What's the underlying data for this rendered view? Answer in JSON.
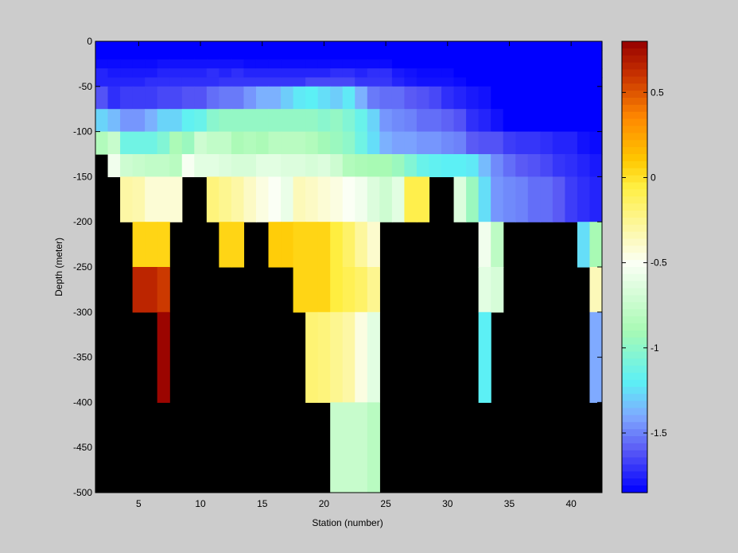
{
  "chart_data": [
    {
      "type": "heatmap",
      "title": "",
      "xlabel": "Station (number)",
      "ylabel": "Depth (meter)",
      "xlim": [
        1.5,
        42.5
      ],
      "ylim": [
        -500,
        0
      ],
      "xticks": [
        5,
        10,
        15,
        20,
        25,
        30,
        35,
        40
      ],
      "yticks": [
        0,
        -50,
        -100,
        -150,
        -200,
        -250,
        -300,
        -350,
        -400,
        -450,
        -500
      ],
      "x": [
        2,
        3,
        4,
        5,
        6,
        7,
        8,
        9,
        10,
        11,
        12,
        13,
        14,
        15,
        16,
        17,
        18,
        19,
        20,
        21,
        22,
        23,
        24,
        25,
        26,
        27,
        28,
        29,
        30,
        31,
        32,
        33,
        34,
        35,
        36,
        37,
        38,
        39,
        40,
        41,
        42
      ],
      "depths": [
        0,
        -10,
        -20,
        -30,
        -40,
        -50,
        -75,
        -100,
        -125,
        -150,
        -200,
        -250,
        -300,
        -400,
        -500
      ],
      "missing_color": "#000000",
      "grid": false,
      "rows": [
        {
          "depth": 0,
          "values": [
            -1.85,
            -1.85,
            -1.85,
            -1.85,
            -1.85,
            -1.85,
            -1.85,
            -1.85,
            -1.85,
            -1.85,
            -1.85,
            -1.85,
            -1.85,
            -1.85,
            -1.85,
            -1.85,
            -1.85,
            -1.85,
            -1.85,
            -1.85,
            -1.85,
            -1.85,
            -1.85,
            -1.85,
            -1.85,
            -1.85,
            -1.85,
            -1.85,
            -1.85,
            -1.85,
            -1.85,
            -1.85,
            -1.85,
            -1.85,
            -1.85,
            -1.85,
            -1.85,
            -1.85,
            -1.85,
            -1.85,
            -1.85
          ]
        },
        {
          "depth": -10,
          "values": [
            -1.85,
            -1.85,
            -1.85,
            -1.85,
            -1.85,
            -1.85,
            -1.85,
            -1.85,
            -1.85,
            -1.85,
            -1.85,
            -1.85,
            -1.85,
            -1.85,
            -1.85,
            -1.85,
            -1.85,
            -1.85,
            -1.85,
            -1.85,
            -1.85,
            -1.85,
            -1.85,
            -1.85,
            -1.85,
            -1.85,
            -1.85,
            -1.85,
            -1.85,
            -1.85,
            -1.85,
            -1.85,
            -1.85,
            -1.85,
            -1.85,
            -1.85,
            -1.85,
            -1.85,
            -1.85,
            -1.85,
            -1.85
          ]
        },
        {
          "depth": -20,
          "values": [
            -1.82,
            -1.82,
            -1.82,
            -1.82,
            -1.82,
            -1.8,
            -1.8,
            -1.8,
            -1.8,
            -1.8,
            -1.8,
            -1.8,
            -1.82,
            -1.82,
            -1.82,
            -1.82,
            -1.82,
            -1.82,
            -1.82,
            -1.82,
            -1.82,
            -1.82,
            -1.82,
            -1.82,
            -1.85,
            -1.85,
            -1.85,
            -1.85,
            -1.85,
            -1.85,
            -1.85,
            -1.85,
            -1.85,
            -1.85,
            -1.85,
            -1.85,
            -1.85,
            -1.85,
            -1.85,
            -1.85,
            -1.85
          ]
        },
        {
          "depth": -30,
          "values": [
            -1.75,
            -1.78,
            -1.78,
            -1.78,
            -1.78,
            -1.75,
            -1.75,
            -1.75,
            -1.75,
            -1.72,
            -1.75,
            -1.72,
            -1.75,
            -1.75,
            -1.75,
            -1.75,
            -1.75,
            -1.75,
            -1.75,
            -1.72,
            -1.72,
            -1.75,
            -1.72,
            -1.72,
            -1.78,
            -1.8,
            -1.82,
            -1.82,
            -1.82,
            -1.85,
            -1.85,
            -1.85,
            -1.85,
            -1.85,
            -1.85,
            -1.85,
            -1.85,
            -1.85,
            -1.85,
            -1.85,
            -1.85
          ]
        },
        {
          "depth": -40,
          "values": [
            -1.75,
            -1.75,
            -1.75,
            -1.75,
            -1.72,
            -1.72,
            -1.72,
            -1.72,
            -1.72,
            -1.72,
            -1.7,
            -1.7,
            -1.7,
            -1.7,
            -1.7,
            -1.7,
            -1.7,
            -1.65,
            -1.65,
            -1.65,
            -1.65,
            -1.7,
            -1.7,
            -1.7,
            -1.75,
            -1.78,
            -1.8,
            -1.8,
            -1.8,
            -1.82,
            -1.85,
            -1.85,
            -1.85,
            -1.85,
            -1.85,
            -1.85,
            -1.85,
            -1.85,
            -1.85,
            -1.85,
            -1.85
          ]
        },
        {
          "depth": -50,
          "values": [
            -1.62,
            -1.72,
            -1.68,
            -1.68,
            -1.68,
            -1.65,
            -1.65,
            -1.62,
            -1.62,
            -1.55,
            -1.52,
            -1.52,
            -1.45,
            -1.38,
            -1.38,
            -1.3,
            -1.22,
            -1.2,
            -1.25,
            -1.3,
            -1.22,
            -1.38,
            -1.52,
            -1.55,
            -1.55,
            -1.6,
            -1.62,
            -1.65,
            -1.72,
            -1.75,
            -1.78,
            -1.8,
            -1.85,
            -1.85,
            -1.85,
            -1.85,
            -1.85,
            -1.85,
            -1.85,
            -1.85,
            -1.85
          ]
        },
        {
          "depth": -75,
          "values": [
            -1.28,
            -1.35,
            -1.45,
            -1.45,
            -1.38,
            -1.28,
            -1.28,
            -1.18,
            -1.15,
            -1.02,
            -0.98,
            -0.98,
            -0.98,
            -0.98,
            -0.98,
            -0.98,
            -0.98,
            -0.98,
            -1.02,
            -0.98,
            -1.05,
            -1.15,
            -1.28,
            -1.45,
            -1.48,
            -1.5,
            -1.55,
            -1.55,
            -1.58,
            -1.62,
            -1.72,
            -1.75,
            -1.8,
            -1.85,
            -1.85,
            -1.85,
            -1.85,
            -1.85,
            -1.85,
            -1.85,
            -1.85
          ]
        },
        {
          "depth": -100,
          "values": [
            -0.85,
            -0.75,
            -1.12,
            -1.12,
            -1.12,
            -1.05,
            -0.88,
            -0.95,
            -0.72,
            -0.78,
            -0.78,
            -0.88,
            -0.85,
            -0.88,
            -0.82,
            -0.82,
            -0.82,
            -0.85,
            -0.92,
            -0.95,
            -1.0,
            -1.12,
            -1.25,
            -1.38,
            -1.42,
            -1.42,
            -1.45,
            -1.45,
            -1.48,
            -1.5,
            -1.6,
            -1.62,
            -1.62,
            -1.68,
            -1.7,
            -1.7,
            -1.72,
            -1.75,
            -1.75,
            -1.8,
            -1.82
          ]
        },
        {
          "depth": -125,
          "values": [
            null,
            -0.55,
            -0.72,
            -0.75,
            -0.78,
            -0.78,
            -0.82,
            -0.52,
            -0.62,
            -0.62,
            -0.65,
            -0.68,
            -0.68,
            -0.62,
            -0.62,
            -0.65,
            -0.65,
            -0.68,
            -0.65,
            -0.72,
            -0.85,
            -0.88,
            -0.9,
            -0.9,
            -0.95,
            -1.05,
            -1.15,
            -1.18,
            -1.2,
            -1.2,
            -1.22,
            -1.35,
            -1.48,
            -1.55,
            -1.6,
            -1.62,
            -1.65,
            -1.7,
            -1.72,
            -1.75,
            -1.78
          ]
        },
        {
          "depth": -150,
          "values": [
            null,
            null,
            -0.3,
            -0.32,
            -0.42,
            -0.42,
            -0.42,
            null,
            null,
            -0.2,
            -0.25,
            -0.3,
            -0.38,
            -0.45,
            -0.5,
            -0.58,
            -0.35,
            -0.38,
            -0.42,
            -0.45,
            -0.5,
            -0.55,
            -0.65,
            -0.72,
            -0.62,
            -0.08,
            -0.08,
            null,
            null,
            -0.65,
            -0.95,
            -1.25,
            -1.45,
            -1.48,
            -1.5,
            -1.55,
            -1.55,
            -1.6,
            -1.68,
            -1.72,
            -1.75
          ]
        },
        {
          "depth": -200,
          "values": [
            null,
            null,
            null,
            0.05,
            0.05,
            0.05,
            null,
            null,
            null,
            null,
            0.05,
            0.05,
            null,
            null,
            0.08,
            0.08,
            0.05,
            0.05,
            0.05,
            -0.05,
            -0.15,
            -0.28,
            -0.4,
            null,
            null,
            null,
            null,
            null,
            null,
            null,
            null,
            -0.55,
            -0.8,
            null,
            null,
            null,
            null,
            null,
            null,
            -1.25,
            -0.9
          ]
        },
        {
          "depth": -250,
          "values": [
            null,
            null,
            null,
            0.65,
            0.65,
            0.58,
            null,
            null,
            null,
            null,
            null,
            null,
            null,
            null,
            null,
            null,
            0.05,
            0.05,
            0.05,
            -0.05,
            -0.1,
            -0.15,
            -0.25,
            null,
            null,
            null,
            null,
            null,
            null,
            null,
            null,
            -0.62,
            -0.68,
            null,
            null,
            null,
            null,
            null,
            null,
            null,
            -0.35
          ]
        },
        {
          "depth": -300,
          "values": [
            null,
            null,
            null,
            null,
            null,
            0.78,
            null,
            null,
            null,
            null,
            null,
            null,
            null,
            null,
            null,
            null,
            null,
            -0.18,
            -0.2,
            -0.25,
            -0.3,
            -0.45,
            -0.62,
            null,
            null,
            null,
            null,
            null,
            null,
            null,
            null,
            -1.2,
            null,
            null,
            null,
            null,
            null,
            null,
            null,
            null,
            -1.4
          ]
        },
        {
          "depth": -400,
          "values": [
            null,
            null,
            null,
            null,
            null,
            null,
            null,
            null,
            null,
            null,
            null,
            null,
            null,
            null,
            null,
            null,
            null,
            null,
            null,
            -0.75,
            -0.75,
            -0.75,
            -0.82,
            null,
            null,
            null,
            null,
            null,
            null,
            null,
            null,
            null,
            null,
            null,
            null,
            null,
            null,
            null,
            null,
            null,
            null
          ]
        }
      ],
      "colorbar": {
        "min": -1.85,
        "max": 0.8,
        "ticks": [
          0.5,
          0,
          -0.5,
          -1,
          -1.5
        ],
        "tick_labels": [
          "0.5",
          "0",
          "-0.5",
          "-1",
          "-1.5"
        ],
        "colormap": [
          "#0000ff",
          "#5a5af5",
          "#7faaff",
          "#5cf0f5",
          "#a8fab4",
          "#fbfff5",
          "#ffee40",
          "#ffc800",
          "#ff8800",
          "#c83200",
          "#960000"
        ],
        "colormap_stops": [
          -1.85,
          -1.6,
          -1.4,
          -1.2,
          -0.9,
          -0.5,
          -0.05,
          0.1,
          0.35,
          0.6,
          0.8
        ]
      }
    }
  ]
}
